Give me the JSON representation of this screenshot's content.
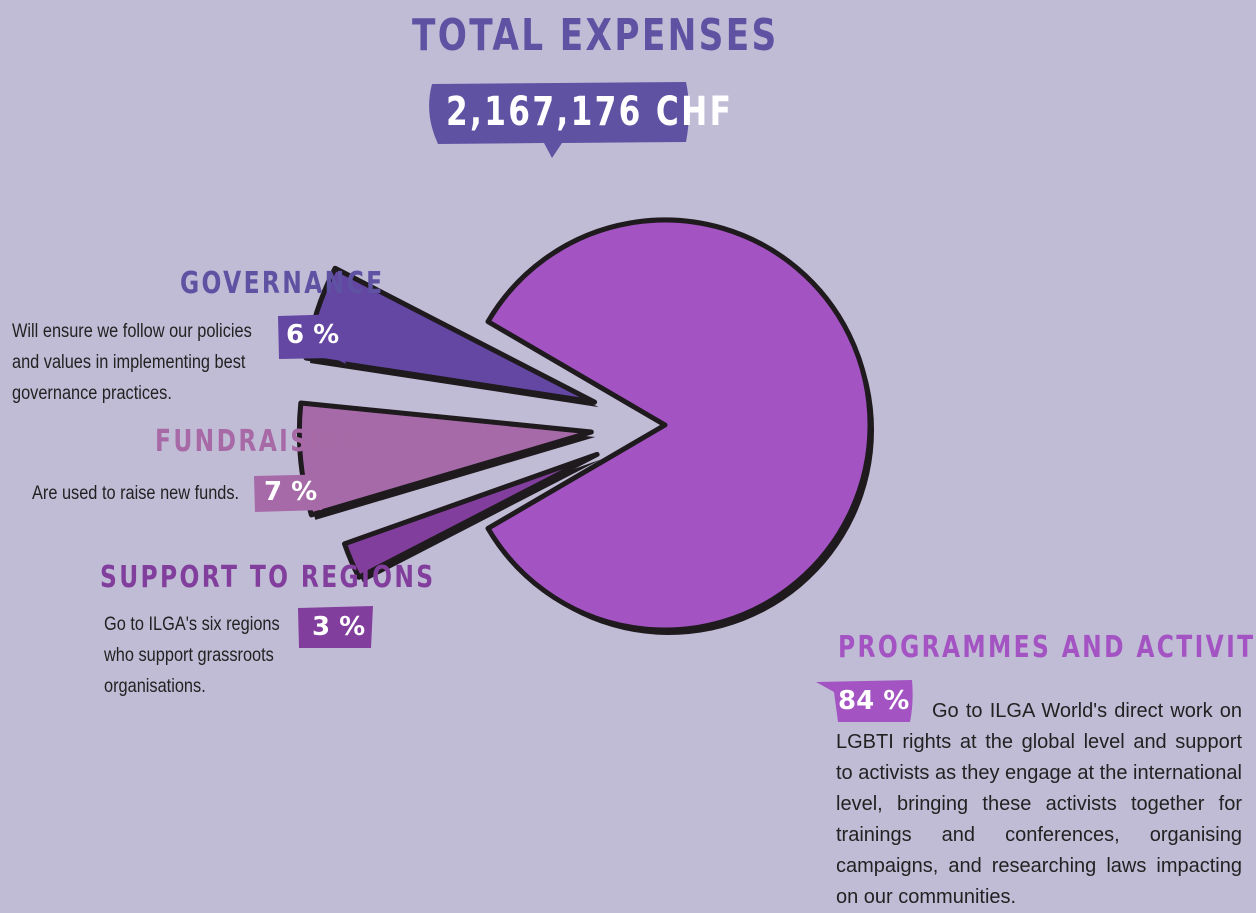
{
  "header": {
    "title": "TOTAL EXPENSES",
    "total": "2,167,176 CHF"
  },
  "categories": {
    "governance": {
      "title": "GOVERNANCE",
      "percent": "6 %",
      "description": "Will ensure we follow our policies and values in implementing best governance practices."
    },
    "fundraising": {
      "title": "FUNDRAISING",
      "percent": "7 %",
      "description": "Are used to raise new funds."
    },
    "regions": {
      "title": "SUPPORT TO REGIONS",
      "percent": "3 %",
      "description": "Go to ILGA's six regions who support grassroots organisations."
    },
    "programmes": {
      "title": "PROGRAMMES AND ACTIVITIES",
      "percent": "84 %",
      "description": "Go to ILGA World's direct work on LGBTI rights at the global level and support to activists as they engage at the international level, bringing these activists together for trainings and conferences, organising campaigns, and researching laws impacting on our communities."
    }
  },
  "colors": {
    "background": "#c1bcd6",
    "programmes": "#a354c2",
    "governance": "#6446a3",
    "fundraising": "#a66aa8",
    "regions": "#823e9c",
    "outline": "#1e1a1d"
  },
  "chart_data": {
    "type": "pie",
    "title": "TOTAL EXPENSES",
    "total": "2,167,176 CHF",
    "slices": [
      {
        "name": "PROGRAMMES AND ACTIVITIES",
        "value": 84
      },
      {
        "name": "GOVERNANCE",
        "value": 6
      },
      {
        "name": "FUNDRAISING",
        "value": 7
      },
      {
        "name": "SUPPORT TO REGIONS",
        "value": 3
      }
    ]
  }
}
